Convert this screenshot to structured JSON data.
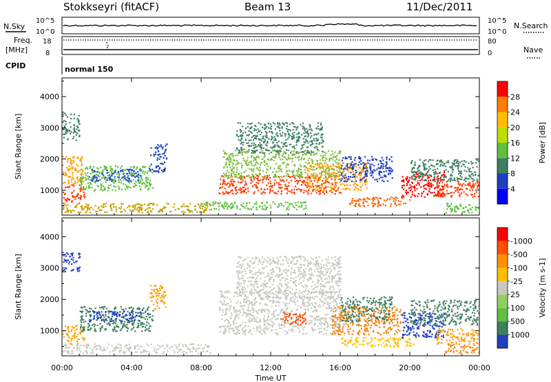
{
  "header": {
    "title": "Stokkseyri (fitACF)",
    "beam": "Beam 13",
    "date": "11/Dec/2011"
  },
  "strip_panels": {
    "nsky_label": "N.Sky",
    "nsky_ticks": [
      "10^5",
      "10^0"
    ],
    "nsearch_label": "N.Search",
    "nsearch_ticks": [
      "10^5",
      "10^0"
    ],
    "freq_label_line1": "Freq.",
    "freq_label_line2": "[MHz]",
    "freq_ticks": [
      "18",
      "8"
    ],
    "nave_label": "Nave",
    "nave_ticks": [
      "80",
      "0"
    ],
    "cpid_label": "CPID",
    "cpid_text": "normal 150"
  },
  "chart_data": [
    {
      "type": "heatmap",
      "name": "power",
      "ylabel": "Slant Range [km]",
      "xlabel": "",
      "y_ticks": [
        1000,
        2000,
        3000,
        4000
      ],
      "ylim": [
        200,
        4600
      ],
      "x_ticks": [
        "00:00",
        "04:00",
        "08:00",
        "12:00",
        "16:00",
        "20:00",
        "00:00"
      ],
      "xlim_hours": [
        0,
        24
      ],
      "colorbar": {
        "label": "Power [dB]",
        "ticks": [
          "4",
          "8",
          "12",
          "16",
          "20",
          "24",
          "28"
        ],
        "colors": [
          "#0000ff",
          "#1f3fbf",
          "#3f7f5f",
          "#5fbf3f",
          "#bfdf00",
          "#ffbf00",
          "#ff7f00",
          "#ff0000"
        ]
      },
      "echo_regions": [
        {
          "t0": 0.0,
          "t1": 1.3,
          "r0": 600,
          "r1": 1200,
          "color": "#ff3a00"
        },
        {
          "t0": 0.0,
          "t1": 1.2,
          "r0": 1200,
          "r1": 2100,
          "color": "#ff9f00"
        },
        {
          "t0": 0.0,
          "t1": 1.0,
          "r0": 2600,
          "r1": 3500,
          "color": "#3f7f5f"
        },
        {
          "t0": 1.0,
          "t1": 5.2,
          "r0": 1000,
          "r1": 1800,
          "color": "#5fbf3f"
        },
        {
          "t0": 1.5,
          "t1": 4.5,
          "r0": 1300,
          "r1": 1700,
          "color": "#2b4fd0"
        },
        {
          "t0": 5.0,
          "t1": 6.0,
          "r0": 1600,
          "r1": 2500,
          "color": "#1f3fbf"
        },
        {
          "t0": 0.0,
          "t1": 8.5,
          "r0": 300,
          "r1": 600,
          "color": "#c8a000"
        },
        {
          "t0": 8.0,
          "t1": 14.0,
          "r0": 400,
          "r1": 650,
          "color": "#5fbf3f"
        },
        {
          "t0": 9.0,
          "t1": 16.0,
          "r0": 900,
          "r1": 1500,
          "color": "#ff3a00"
        },
        {
          "t0": 9.2,
          "t1": 16.0,
          "r0": 1400,
          "r1": 2300,
          "color": "#7fbf3f"
        },
        {
          "t0": 10.0,
          "t1": 15.0,
          "r0": 2200,
          "r1": 3200,
          "color": "#3f7f5f"
        },
        {
          "t0": 14.0,
          "t1": 17.5,
          "r0": 1000,
          "r1": 1900,
          "color": "#ff9f00"
        },
        {
          "t0": 16.0,
          "t1": 19.0,
          "r0": 1300,
          "r1": 2100,
          "color": "#1f3fbf"
        },
        {
          "t0": 16.5,
          "t1": 20.0,
          "r0": 500,
          "r1": 800,
          "color": "#ff6000"
        },
        {
          "t0": 19.5,
          "t1": 22.0,
          "r0": 800,
          "r1": 1600,
          "color": "#ff0000"
        },
        {
          "t0": 21.5,
          "t1": 24.0,
          "r0": 800,
          "r1": 1300,
          "color": "#ff3a00"
        },
        {
          "t0": 20.0,
          "t1": 24.0,
          "r0": 1300,
          "r1": 2000,
          "color": "#3f7f5f"
        },
        {
          "t0": 22.0,
          "t1": 24.0,
          "r0": 300,
          "r1": 600,
          "color": "#5fbf3f"
        }
      ]
    },
    {
      "type": "heatmap",
      "name": "velocity",
      "ylabel": "Slant Range [km]",
      "xlabel": "Time UT",
      "y_ticks": [
        1000,
        2000,
        3000,
        4000
      ],
      "ylim": [
        200,
        4600
      ],
      "x_ticks": [
        "00:00",
        "04:00",
        "08:00",
        "12:00",
        "16:00",
        "20:00",
        "00:00"
      ],
      "xlim_hours": [
        0,
        24
      ],
      "colorbar": {
        "label": "Velocity [m s-1]",
        "ticks": [
          "1000",
          "500",
          "100",
          "25",
          "-25",
          "-100",
          "-500",
          "-1000"
        ],
        "colors": [
          "#2040c0",
          "#3f7f5f",
          "#5fbf3f",
          "#90d060",
          "#c8c8c0",
          "#ffbf00",
          "#ff8f00",
          "#ff5000",
          "#ff0000"
        ]
      },
      "echo_regions": [
        {
          "t0": 0.0,
          "t1": 1.0,
          "r0": 2900,
          "r1": 3500,
          "color": "#2040c0"
        },
        {
          "t0": 0.0,
          "t1": 1.3,
          "r0": 600,
          "r1": 1200,
          "color": "#ff9f00"
        },
        {
          "t0": 1.0,
          "t1": 5.2,
          "r0": 1000,
          "r1": 1800,
          "color": "#3f7f5f"
        },
        {
          "t0": 1.5,
          "t1": 4.5,
          "r0": 1300,
          "r1": 1650,
          "color": "#2040c0"
        },
        {
          "t0": 0.0,
          "t1": 8.5,
          "r0": 300,
          "r1": 600,
          "color": "#c8c8c0"
        },
        {
          "t0": 5.0,
          "t1": 6.0,
          "r0": 1700,
          "r1": 2500,
          "color": "#ff9f00"
        },
        {
          "t0": 9.0,
          "t1": 16.0,
          "r0": 900,
          "r1": 2300,
          "color": "#c8c8c0"
        },
        {
          "t0": 10.0,
          "t1": 16.0,
          "r0": 2200,
          "r1": 3400,
          "color": "#c8c8c0"
        },
        {
          "t0": 12.5,
          "t1": 14.0,
          "r0": 1200,
          "r1": 1600,
          "color": "#ff5000"
        },
        {
          "t0": 15.5,
          "t1": 19.5,
          "r0": 900,
          "r1": 1800,
          "color": "#ff7f00"
        },
        {
          "t0": 16.0,
          "t1": 19.0,
          "r0": 1300,
          "r1": 2100,
          "color": "#3f7f5f"
        },
        {
          "t0": 16.0,
          "t1": 20.5,
          "r0": 500,
          "r1": 800,
          "color": "#ffbf00"
        },
        {
          "t0": 19.5,
          "t1": 22.0,
          "r0": 800,
          "r1": 1600,
          "color": "#2040c0"
        },
        {
          "t0": 20.0,
          "t1": 24.0,
          "r0": 1200,
          "r1": 2000,
          "color": "#3f7f5f"
        },
        {
          "t0": 21.5,
          "t1": 24.0,
          "r0": 600,
          "r1": 1100,
          "color": "#ff9f00"
        },
        {
          "t0": 22.0,
          "t1": 24.0,
          "r0": 300,
          "r1": 600,
          "color": "#ff7f00"
        }
      ]
    }
  ]
}
